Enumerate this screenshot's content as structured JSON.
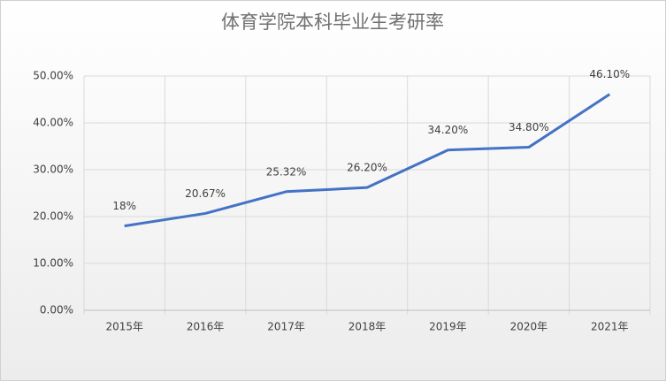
{
  "chart_data": {
    "type": "line",
    "title": "体育学院本科毕业生考研率",
    "categories": [
      "2015年",
      "2016年",
      "2017年",
      "2018年",
      "2019年",
      "2020年",
      "2021年"
    ],
    "values": [
      18,
      20.67,
      25.32,
      26.2,
      34.2,
      34.8,
      46.1
    ],
    "value_labels": [
      "18%",
      "20.67%",
      "25.32%",
      "26.20%",
      "34.20%",
      "34.80%",
      "46.10%"
    ],
    "color": "#4472c4",
    "ylim": [
      0,
      50
    ],
    "yticks": [
      {
        "value": 0,
        "label": "0.00%"
      },
      {
        "value": 10,
        "label": "10.00%"
      },
      {
        "value": 20,
        "label": "20.00%"
      },
      {
        "value": 30,
        "label": "30.00%"
      },
      {
        "value": 40,
        "label": "40.00%"
      },
      {
        "value": 50,
        "label": "50.00%"
      }
    ],
    "grid": true
  }
}
